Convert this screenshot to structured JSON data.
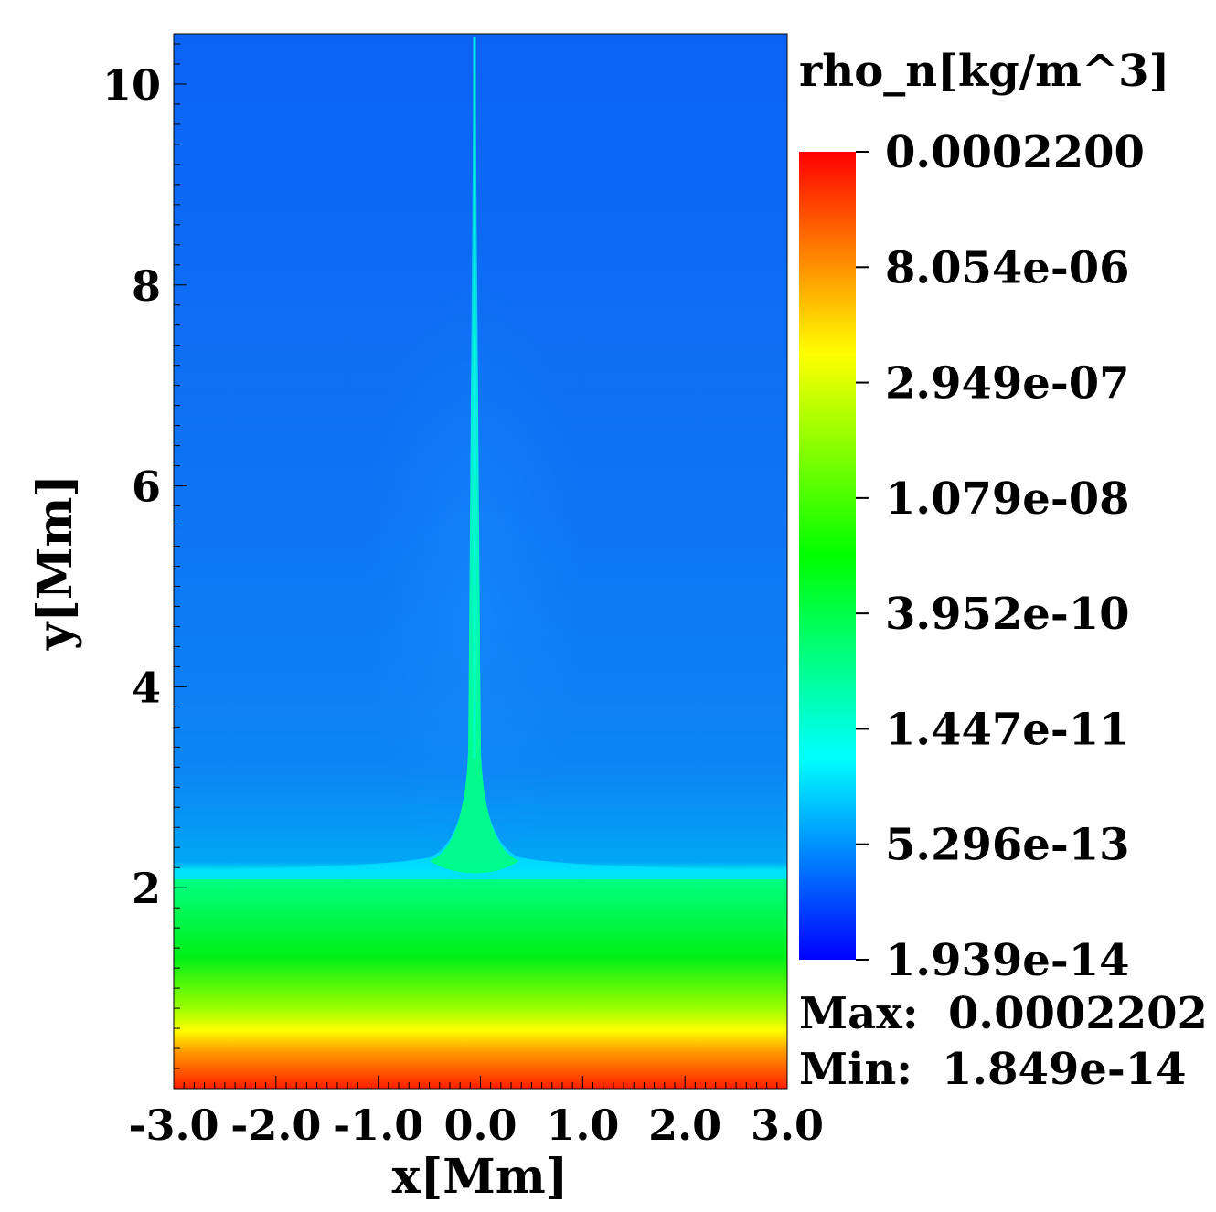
{
  "chart_data": {
    "type": "heatmap",
    "variable_label": "rho_n[kg/m^3]",
    "xlabel": "x[Mm]",
    "ylabel": "y[Mm]",
    "xlim": [
      -3.0,
      3.0
    ],
    "ylim": [
      0.0,
      10.5
    ],
    "x_ticks": [
      -3.0,
      -2.0,
      -1.0,
      0.0,
      1.0,
      2.0,
      3.0
    ],
    "x_tick_labels": [
      "-3.0",
      "-2.0",
      "-1.0",
      "0.0",
      "1.0",
      "2.0",
      "3.0"
    ],
    "y_ticks": [
      2,
      4,
      6,
      8,
      10
    ],
    "y_tick_labels": [
      "2",
      "4",
      "6",
      "8",
      "10"
    ],
    "colorbar": {
      "scale": "log",
      "colors": [
        "#0000ff",
        "#0080ff",
        "#00ffff",
        "#00ff80",
        "#00ff00",
        "#80ff00",
        "#ffff00",
        "#ff8000",
        "#ff0000"
      ],
      "tick_values": [
        0.00022,
        8.054e-06,
        2.949e-07,
        1.079e-08,
        3.952e-10,
        1.447e-11,
        5.296e-13,
        1.939e-14
      ],
      "tick_labels": [
        "0.0002200",
        "8.054e-06",
        "2.949e-07",
        "1.079e-08",
        "3.952e-10",
        "1.447e-11",
        "5.296e-13",
        "1.939e-14"
      ]
    },
    "stats": {
      "max_label": "Max:",
      "max_value": "0.0002202",
      "min_label": "Min:",
      "min_value": "1.849e-14"
    },
    "features": {
      "transition_height_mm": 2.1,
      "jet_center_x_mm": 0.0,
      "description_colors": {
        "corona": "#0d6cf5",
        "upper_corona": "#0c63f8",
        "transition": "#00e6ff",
        "chromosphere": "#00ff55",
        "photosphere_low": "#ff2a00"
      }
    }
  }
}
